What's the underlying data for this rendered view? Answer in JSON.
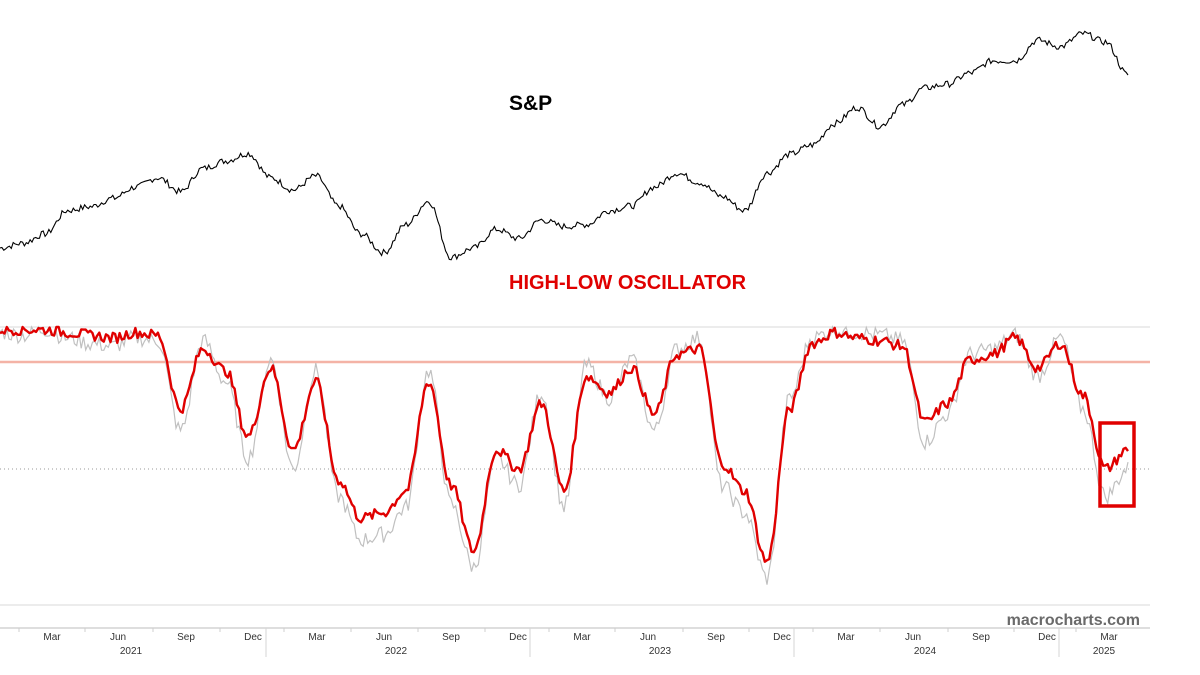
{
  "chart_data": [
    {
      "type": "line",
      "title": "S&P",
      "x": [
        "2021-01",
        "2021-02",
        "2021-03",
        "2021-04",
        "2021-05",
        "2021-06",
        "2021-07",
        "2021-08",
        "2021-09",
        "2021-10",
        "2021-11",
        "2021-12",
        "2022-01",
        "2022-02",
        "2022-03",
        "2022-04",
        "2022-05",
        "2022-06",
        "2022-07",
        "2022-08",
        "2022-09",
        "2022-10",
        "2022-11",
        "2022-12",
        "2023-01",
        "2023-02",
        "2023-03",
        "2023-04",
        "2023-05",
        "2023-06",
        "2023-07",
        "2023-08",
        "2023-09",
        "2023-10",
        "2023-11",
        "2023-12",
        "2024-01",
        "2024-02",
        "2024-03",
        "2024-04",
        "2024-05",
        "2024-06",
        "2024-07",
        "2024-08",
        "2024-09",
        "2024-10",
        "2024-11",
        "2024-12",
        "2025-01",
        "2025-02",
        "2025-03"
      ],
      "series": [
        {
          "values": [
            3750,
            3800,
            3900,
            4150,
            4190,
            4280,
            4400,
            4500,
            4350,
            4600,
            4680,
            4760,
            4500,
            4370,
            4520,
            4200,
            3900,
            3700,
            4000,
            4250,
            3650,
            3750,
            3950,
            3850,
            4050,
            3980,
            4000,
            4150,
            4200,
            4400,
            4550,
            4450,
            4300,
            4150,
            4550,
            4750,
            4850,
            5080,
            5250,
            5050,
            5280,
            5460,
            5500,
            5620,
            5750,
            5750,
            5970,
            5900,
            6040,
            5950,
            5600
          ]
        }
      ],
      "color": "#000000"
    },
    {
      "type": "line",
      "title": "HIGH-LOW OSCILLATOR",
      "x": [
        "2021-01",
        "2021-02",
        "2021-03",
        "2021-04",
        "2021-05",
        "2021-06",
        "2021-07",
        "2021-08",
        "2021-09",
        "2021-10",
        "2021-11",
        "2021-12",
        "2022-01",
        "2022-02",
        "2022-03",
        "2022-04",
        "2022-05",
        "2022-06",
        "2022-07",
        "2022-08",
        "2022-09",
        "2022-10",
        "2022-11",
        "2022-12",
        "2023-01",
        "2023-02",
        "2023-03",
        "2023-04",
        "2023-05",
        "2023-06",
        "2023-07",
        "2023-08",
        "2023-09",
        "2023-10",
        "2023-11",
        "2023-12",
        "2024-01",
        "2024-02",
        "2024-03",
        "2024-04",
        "2024-05",
        "2024-06",
        "2024-07",
        "2024-08",
        "2024-09",
        "2024-10",
        "2024-11",
        "2024-12",
        "2025-01",
        "2025-02",
        "2025-03"
      ],
      "series": [
        {
          "values": [
            99,
            99,
            99,
            98,
            97,
            96,
            98,
            97,
            70,
            92,
            84,
            60,
            85,
            55,
            80,
            44,
            30,
            32,
            40,
            80,
            42,
            18,
            55,
            48,
            72,
            40,
            82,
            76,
            85,
            68,
            90,
            92,
            50,
            40,
            14,
            70,
            94,
            98,
            96,
            95,
            93,
            65,
            72,
            88,
            90,
            96,
            85,
            94,
            75,
            48,
            55
          ],
          "color": "#e00000"
        },
        {
          "values": [
            98,
            97,
            99,
            96,
            94,
            93,
            96,
            95,
            62,
            95,
            80,
            52,
            88,
            48,
            84,
            38,
            22,
            24,
            34,
            84,
            35,
            12,
            52,
            42,
            76,
            34,
            86,
            74,
            88,
            62,
            92,
            96,
            42,
            32,
            8,
            74,
            96,
            99,
            98,
            97,
            95,
            58,
            68,
            90,
            92,
            97,
            82,
            96,
            70,
            38,
            48
          ],
          "color": "#c0c0c0"
        }
      ],
      "reference_line_color": "#f4b3a6",
      "highlight_box_color": "#e00000"
    }
  ],
  "x_axis": {
    "months": [
      "Mar",
      "Jun",
      "Sep",
      "Dec",
      "Mar",
      "Jun",
      "Sep",
      "Dec",
      "Mar",
      "Jun",
      "Sep",
      "Dec",
      "Mar",
      "Jun",
      "Sep",
      "Dec",
      "Mar"
    ],
    "years": [
      "2021",
      "2022",
      "2023",
      "2024",
      "2025"
    ]
  },
  "watermark": "macrocharts.com"
}
